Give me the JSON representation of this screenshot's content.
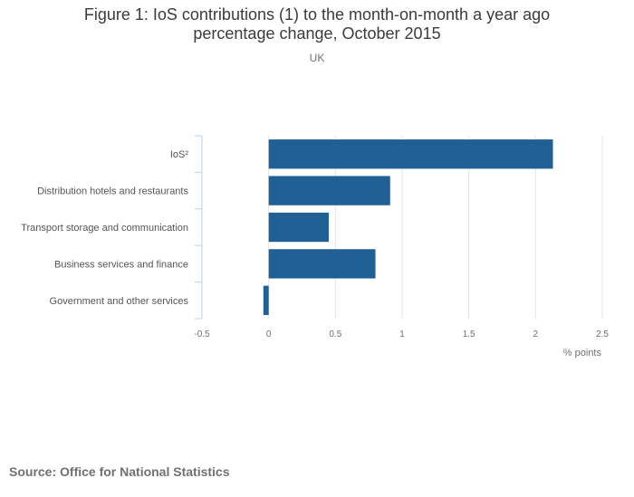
{
  "title_line1": "Figure 1: IoS contributions (1) to the month-on-month a year ago",
  "title_line2": "percentage change, October 2015",
  "subtitle": "UK",
  "source": "Source: Office for National Statistics",
  "colors": {
    "bar": "#206095",
    "grid": "#e5e5e5",
    "axis": "#bcd0e6",
    "text": "#707070"
  },
  "chart_data": {
    "type": "bar",
    "orientation": "horizontal",
    "title": "Figure 1: IoS contributions (1) to the month-on-month a year ago percentage change, October 2015",
    "subtitle": "UK",
    "categories": [
      "IoS²",
      "Distribution hotels and restaurants",
      "Transport storage and communication",
      "Business services and finance",
      "Government and other services"
    ],
    "values": [
      2.13,
      0.91,
      0.45,
      0.8,
      -0.04
    ],
    "xlabel": "% points",
    "ylabel": "",
    "xlim": [
      -0.5,
      2.5
    ],
    "xticks": [
      -0.5,
      0,
      0.5,
      1,
      1.5,
      2,
      2.5
    ],
    "xtick_labels": [
      "-0.5",
      "0",
      "0.5",
      "1",
      "1.5",
      "2",
      "2.5"
    ],
    "grid": true,
    "legend": "none"
  }
}
